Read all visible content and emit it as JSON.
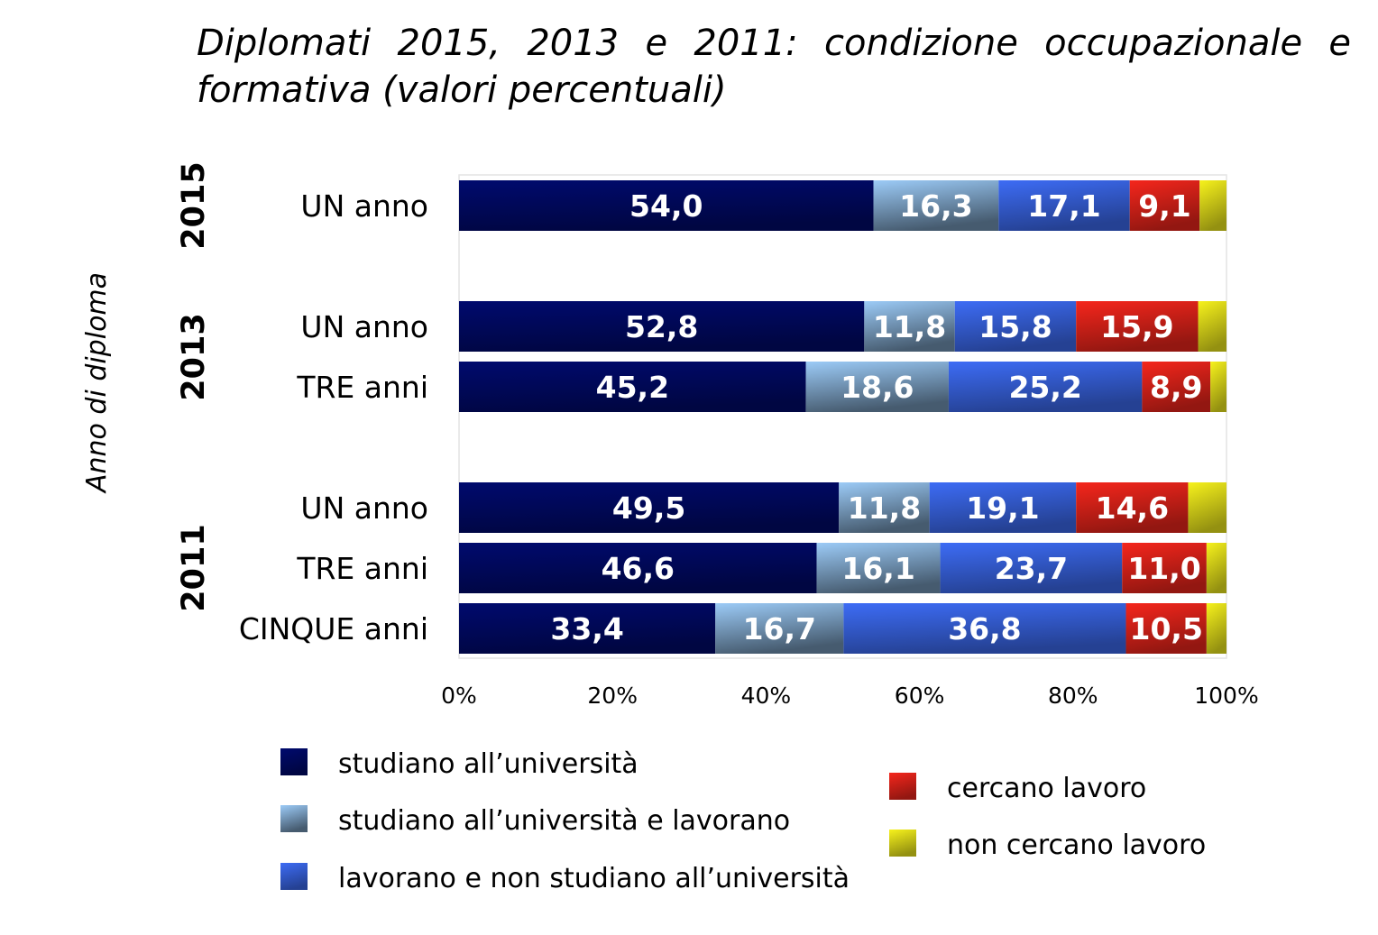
{
  "chart_data": {
    "type": "bar",
    "orientation": "horizontal",
    "stacked": true,
    "title": "Diplomati 2015, 2013 e 2011: condizione occupazionale e formativa (valori percentuali)",
    "ylabel": "Anno di diploma",
    "xlim": [
      0,
      100
    ],
    "xticks": [
      "0%",
      "20%",
      "40%",
      "60%",
      "80%",
      "100%"
    ],
    "grid": false,
    "legend_position": "bottom",
    "groups": [
      {
        "year": "2015",
        "rows": [
          0
        ]
      },
      {
        "year": "2013",
        "rows": [
          1,
          2
        ]
      },
      {
        "year": "2011",
        "rows": [
          3,
          4,
          5
        ]
      }
    ],
    "categories": [
      "UN anno",
      "UN anno",
      "TRE anni",
      "UN anno",
      "TRE anni",
      "CINQUE anni"
    ],
    "series": [
      {
        "name": "studiano all’università",
        "color": "#000a6e",
        "values": [
          54.0,
          52.8,
          45.2,
          49.5,
          46.6,
          33.4
        ],
        "labels": [
          "54,0",
          "52,8",
          "45,2",
          "49,5",
          "46,6",
          "33,4"
        ]
      },
      {
        "name": "studiano all’università e lavorano",
        "color": "#9ccbf7",
        "values": [
          16.3,
          11.8,
          18.6,
          11.8,
          16.1,
          16.7
        ],
        "labels": [
          "16,3",
          "11,8",
          "18,6",
          "11,8",
          "16,1",
          "16,7"
        ]
      },
      {
        "name": "lavorano e non studiano all’università",
        "color": "#3d6cf5",
        "values": [
          17.1,
          15.8,
          25.2,
          19.1,
          23.7,
          36.8
        ],
        "labels": [
          "17,1",
          "15,8",
          "25,2",
          "19,1",
          "23,7",
          "36,8"
        ]
      },
      {
        "name": "cercano lavoro",
        "color": "#f5261c",
        "values": [
          9.1,
          15.9,
          8.9,
          14.6,
          11.0,
          10.5
        ],
        "labels": [
          "9,1",
          "15,9",
          "8,9",
          "14,6",
          "11,0",
          "10,5"
        ]
      },
      {
        "name": "non cercano lavoro",
        "color": "#f7f21c",
        "values": [
          3.5,
          3.7,
          2.1,
          5.0,
          2.6,
          2.6
        ],
        "labels": [
          "",
          "",
          "",
          "",
          "",
          ""
        ]
      }
    ]
  }
}
